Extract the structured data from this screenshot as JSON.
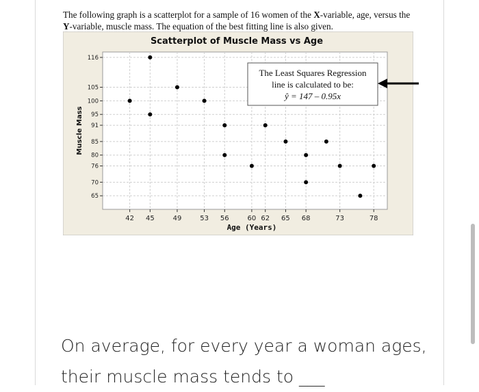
{
  "intro": {
    "part1": "The following graph is a scatterplot for a sample of 16 women of the ",
    "x_bold": "X",
    "part2": "-variable, age, versus the ",
    "y_bold": "Y",
    "part3": "-variable, muscle mass.  The equation of the best fitting line is also given."
  },
  "chart_data": {
    "type": "scatter",
    "title": "Scatterplot of Muscle Mass vs Age",
    "xlabel": "Age (Years)",
    "ylabel": "Muscle Mass",
    "x_ticks": [
      42,
      45,
      49,
      53,
      56,
      60,
      62,
      65,
      68,
      73,
      78
    ],
    "y_ticks": [
      65,
      70,
      76,
      80,
      85,
      91,
      95,
      100,
      105,
      116
    ],
    "xlim": [
      38,
      80
    ],
    "ylim": [
      60,
      118
    ],
    "points": [
      {
        "x": 45,
        "y": 116
      },
      {
        "x": 49,
        "y": 105
      },
      {
        "x": 42,
        "y": 100
      },
      {
        "x": 53,
        "y": 100
      },
      {
        "x": 45,
        "y": 95
      },
      {
        "x": 56,
        "y": 91
      },
      {
        "x": 62,
        "y": 91
      },
      {
        "x": 65,
        "y": 85
      },
      {
        "x": 71,
        "y": 85
      },
      {
        "x": 56,
        "y": 80
      },
      {
        "x": 68,
        "y": 80
      },
      {
        "x": 60,
        "y": 76
      },
      {
        "x": 73,
        "y": 76
      },
      {
        "x": 78,
        "y": 76
      },
      {
        "x": 68,
        "y": 70
      },
      {
        "x": 76,
        "y": 65
      }
    ],
    "grid": true,
    "annotation": {
      "line1": "The Least Squares Regression",
      "line2": "line is calculated to be:",
      "equation": "ŷ = 147 – 0.95x"
    }
  },
  "question": {
    "line1": "On average, for every year a woman ages,",
    "line2": "their muscle mass tends to ___"
  }
}
